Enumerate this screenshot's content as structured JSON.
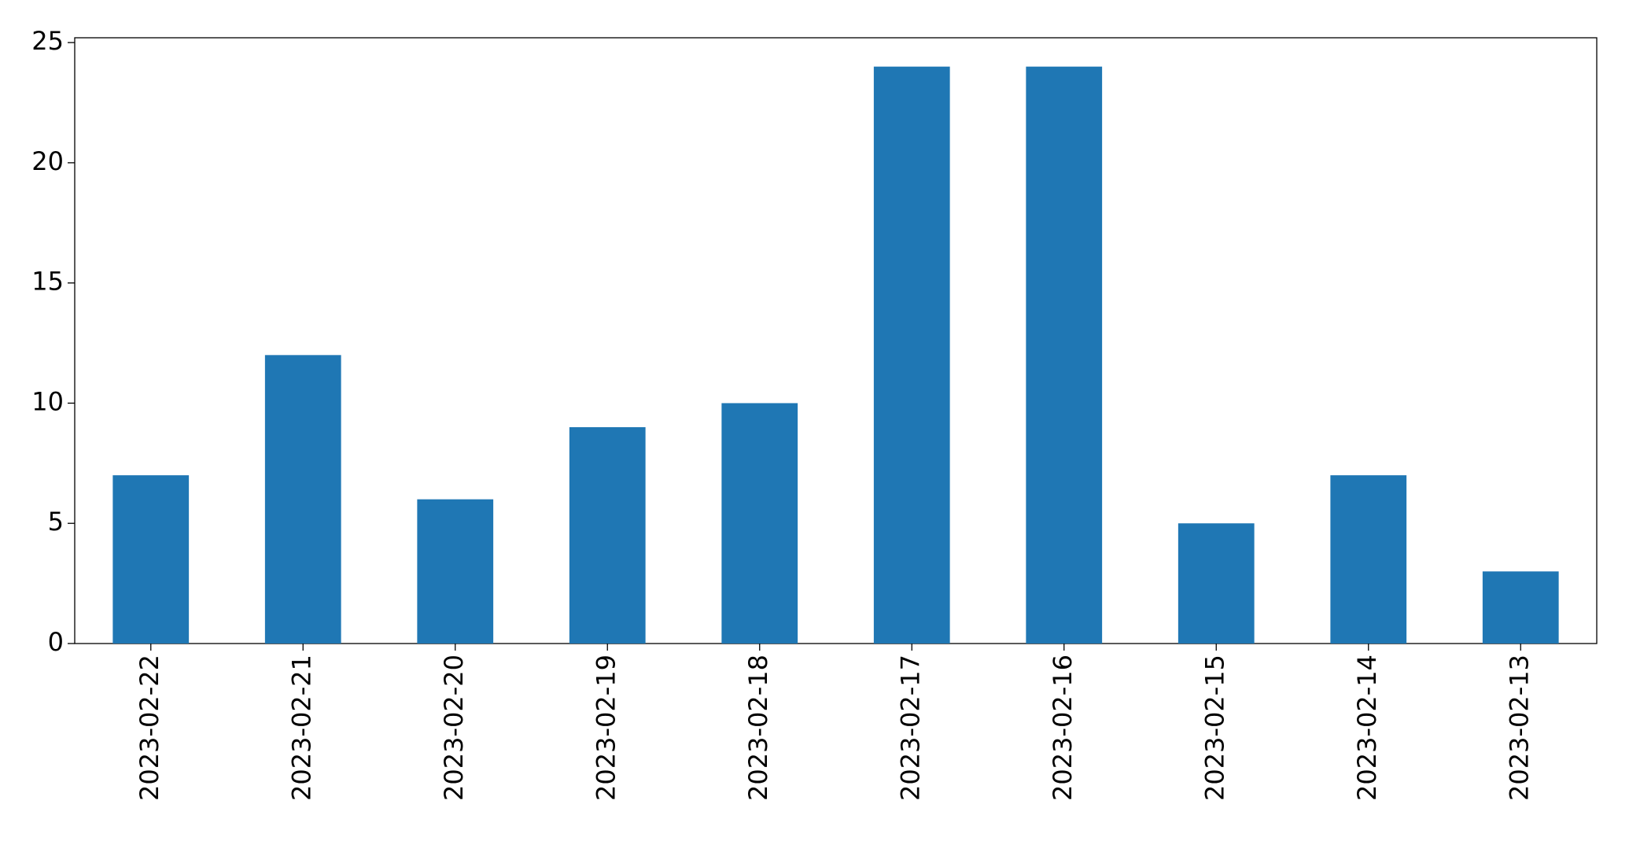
{
  "chart_data": {
    "type": "bar",
    "categories": [
      "2023-02-22",
      "2023-02-21",
      "2023-02-20",
      "2023-02-19",
      "2023-02-18",
      "2023-02-17",
      "2023-02-16",
      "2023-02-15",
      "2023-02-14",
      "2023-02-13"
    ],
    "values": [
      7,
      12,
      6,
      9,
      10,
      24,
      24,
      5,
      7,
      3
    ],
    "color": "#1f77b4",
    "ylim": [
      0,
      25.2
    ],
    "yticks": [
      0,
      5,
      10,
      15,
      20,
      25
    ],
    "grid": false
  }
}
